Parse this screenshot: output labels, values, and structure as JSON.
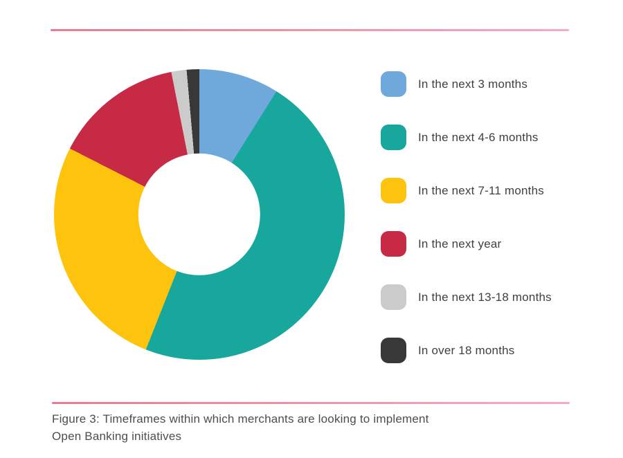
{
  "chart_data": {
    "type": "pie",
    "variant": "donut",
    "legend_position": "right",
    "start_angle_deg": 0,
    "direction": "clockwise",
    "inner_radius_ratio": 0.42,
    "series": [
      {
        "label": "In the next 3 months",
        "value": 8.9,
        "color": "#6fa9dc"
      },
      {
        "label": "In the next 4-6 months",
        "value": 47.1,
        "color": "#18a79c"
      },
      {
        "label": "In the next 7-11 months",
        "value": 26.5,
        "color": "#fdc30d"
      },
      {
        "label": "In the next year",
        "value": 14.4,
        "color": "#c62a45"
      },
      {
        "label": "In the next 13-18 months",
        "value": 1.7,
        "color": "#cbcbcb"
      },
      {
        "label": "In over 18 months",
        "value": 1.4,
        "color": "#383838"
      }
    ]
  },
  "caption": {
    "line1": "Figure 3: Timeframes within which merchants are looking to implement",
    "line2": "Open Banking initiatives"
  },
  "dividers": {
    "color_left": "#e87b90",
    "color_right": "#f5abc0"
  }
}
